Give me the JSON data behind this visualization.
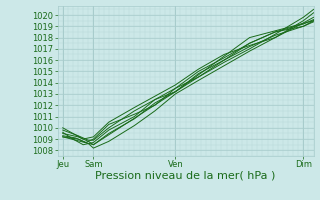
{
  "xlabel": "Pression niveau de la mer( hPa )",
  "bg_color": "#cce8e8",
  "grid_color_minor": "#b8d8d8",
  "grid_color_major": "#a8cccc",
  "line_color": "#1a6b1a",
  "ylim": [
    1007.5,
    1020.8
  ],
  "yticks": [
    1008,
    1009,
    1010,
    1011,
    1012,
    1013,
    1014,
    1015,
    1016,
    1017,
    1018,
    1019,
    1020
  ],
  "xlim": [
    0.0,
    1.0
  ],
  "xtick_positions": [
    0.02,
    0.14,
    0.46,
    0.96
  ],
  "xtick_labels": [
    "Jeu",
    "Sam",
    "Ven",
    "Dim"
  ],
  "lines": [
    {
      "x": [
        0.02,
        0.08,
        0.12,
        0.14,
        0.2,
        0.3,
        0.38,
        0.46,
        0.55,
        0.65,
        0.75,
        0.85,
        0.96,
        1.0
      ],
      "y": [
        1009.2,
        1009.0,
        1008.6,
        1008.2,
        1008.8,
        1010.2,
        1011.5,
        1013.0,
        1014.2,
        1015.5,
        1016.8,
        1018.0,
        1019.3,
        1019.8
      ]
    },
    {
      "x": [
        0.02,
        0.08,
        0.12,
        0.14,
        0.2,
        0.3,
        0.38,
        0.46,
        0.55,
        0.65,
        0.75,
        0.85,
        0.96,
        1.0
      ],
      "y": [
        1009.5,
        1009.2,
        1008.8,
        1008.5,
        1009.5,
        1010.8,
        1012.2,
        1013.2,
        1014.8,
        1016.0,
        1017.2,
        1018.2,
        1019.0,
        1019.5
      ]
    },
    {
      "x": [
        0.02,
        0.08,
        0.12,
        0.14,
        0.2,
        0.3,
        0.38,
        0.46,
        0.55,
        0.65,
        0.75,
        0.85,
        0.96,
        1.0
      ],
      "y": [
        1009.8,
        1009.3,
        1008.9,
        1008.9,
        1010.0,
        1011.5,
        1012.5,
        1013.5,
        1015.0,
        1016.2,
        1017.5,
        1018.5,
        1019.2,
        1019.6
      ]
    },
    {
      "x": [
        0.02,
        0.06,
        0.1,
        0.14,
        0.2,
        0.3,
        0.38,
        0.46,
        0.55,
        0.65,
        0.75,
        0.85,
        0.96,
        1.0
      ],
      "y": [
        1010.0,
        1009.5,
        1009.0,
        1009.2,
        1010.5,
        1011.8,
        1012.8,
        1013.8,
        1015.2,
        1016.5,
        1017.3,
        1018.0,
        1019.5,
        1020.2
      ]
    },
    {
      "x": [
        0.02,
        0.07,
        0.11,
        0.14,
        0.2,
        0.3,
        0.38,
        0.46,
        0.55,
        0.65,
        0.75,
        0.85,
        0.96,
        1.0
      ],
      "y": [
        1009.3,
        1009.1,
        1008.7,
        1009.0,
        1010.3,
        1011.2,
        1012.0,
        1013.5,
        1014.5,
        1015.8,
        1017.0,
        1018.3,
        1019.8,
        1020.5
      ]
    },
    {
      "x": [
        0.02,
        0.06,
        0.1,
        0.14,
        0.2,
        0.3,
        0.38,
        0.46,
        0.55,
        0.65,
        0.75,
        0.85,
        0.96,
        1.0
      ],
      "y": [
        1009.6,
        1009.0,
        1008.5,
        1008.7,
        1009.8,
        1011.0,
        1012.5,
        1013.2,
        1014.5,
        1016.0,
        1017.5,
        1018.5,
        1019.0,
        1019.4
      ]
    },
    {
      "x": [
        0.02,
        0.14,
        0.46,
        0.75,
        1.0
      ],
      "y": [
        1009.2,
        1008.5,
        1013.2,
        1018.0,
        1019.5
      ]
    }
  ],
  "tick_label_fontsize": 6.0,
  "xlabel_fontsize": 8.0
}
